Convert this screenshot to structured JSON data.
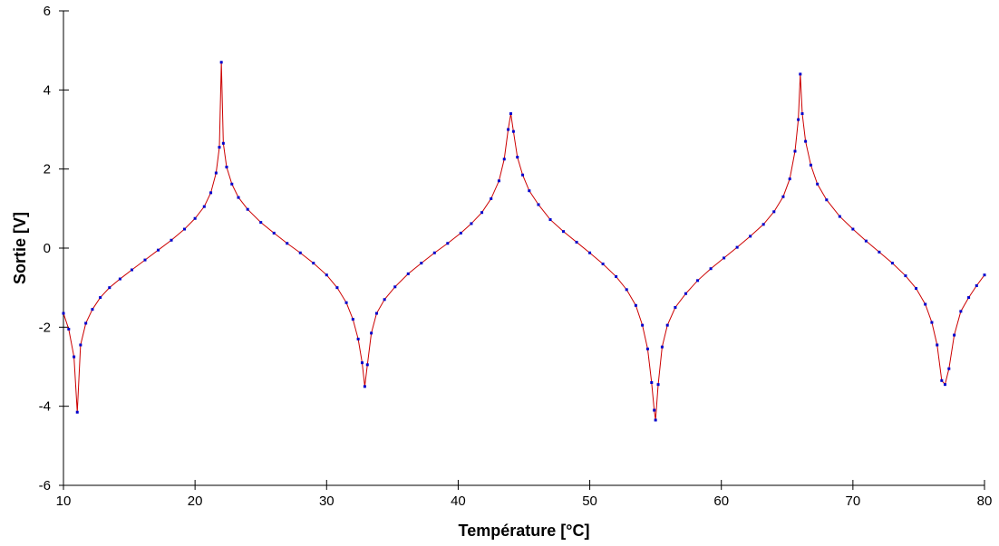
{
  "chart_data": {
    "type": "line",
    "title": "",
    "xlabel": "Température [°C]",
    "ylabel": "Sortie [V]",
    "xlim": [
      10,
      80
    ],
    "ylim": [
      -6,
      6
    ],
    "xticks": [
      "10",
      "20",
      "30",
      "40",
      "50",
      "60",
      "70",
      "80"
    ],
    "yticks": [
      "-6",
      "-4",
      "-2",
      "0",
      "2",
      "4",
      "6"
    ],
    "grid": false,
    "legend": "none",
    "colors": {
      "line": "#cc0000",
      "markers": "#0000cc"
    },
    "series": [
      {
        "x": [
          10.0,
          10.4,
          10.8,
          11.05,
          11.3,
          11.7,
          12.2,
          12.8,
          13.5,
          14.3,
          15.2,
          16.2,
          17.2,
          18.2,
          19.2,
          20.0,
          20.7,
          21.2,
          21.6,
          21.85,
          22.0,
          22.15,
          22.4,
          22.8,
          23.3,
          24.0,
          25.0,
          26.0,
          27.0,
          28.0,
          29.0,
          30.0,
          30.8,
          31.5,
          32.0,
          32.4,
          32.7,
          32.9,
          33.1,
          33.4,
          33.8,
          34.4,
          35.2,
          36.2,
          37.2,
          38.2,
          39.2,
          40.2,
          41.0,
          41.8,
          42.5,
          43.1,
          43.5,
          43.8,
          44.0,
          44.2,
          44.5,
          44.9,
          45.4,
          46.1,
          47.0,
          48.0,
          49.0,
          50.0,
          51.0,
          52.0,
          52.8,
          53.5,
          54.0,
          54.4,
          54.7,
          54.9,
          55.0,
          55.2,
          55.5,
          55.9,
          56.5,
          57.3,
          58.2,
          59.2,
          60.2,
          61.2,
          62.2,
          63.2,
          64.0,
          64.7,
          65.2,
          65.6,
          65.85,
          66.0,
          66.15,
          66.4,
          66.8,
          67.3,
          68.0,
          69.0,
          70.0,
          71.0,
          72.0,
          73.0,
          74.0,
          74.8,
          75.5,
          76.0,
          76.4,
          76.75,
          77.0,
          77.3,
          77.7,
          78.2,
          78.8,
          79.4,
          80.0
        ],
        "y": [
          -1.65,
          -2.05,
          -2.75,
          -4.15,
          -2.45,
          -1.9,
          -1.55,
          -1.25,
          -1.0,
          -0.78,
          -0.55,
          -0.3,
          -0.05,
          0.2,
          0.48,
          0.75,
          1.05,
          1.4,
          1.9,
          2.55,
          4.7,
          2.65,
          2.05,
          1.62,
          1.28,
          0.98,
          0.65,
          0.38,
          0.12,
          -0.12,
          -0.38,
          -0.68,
          -1.0,
          -1.38,
          -1.8,
          -2.3,
          -2.9,
          -3.5,
          -2.95,
          -2.15,
          -1.65,
          -1.3,
          -0.98,
          -0.65,
          -0.38,
          -0.12,
          0.12,
          0.38,
          0.62,
          0.9,
          1.25,
          1.7,
          2.25,
          3.0,
          3.4,
          2.95,
          2.3,
          1.85,
          1.45,
          1.1,
          0.72,
          0.42,
          0.15,
          -0.12,
          -0.4,
          -0.72,
          -1.05,
          -1.45,
          -1.95,
          -2.55,
          -3.4,
          -4.1,
          -4.35,
          -3.45,
          -2.5,
          -1.95,
          -1.5,
          -1.15,
          -0.82,
          -0.52,
          -0.25,
          0.02,
          0.3,
          0.6,
          0.92,
          1.3,
          1.75,
          2.45,
          3.25,
          4.4,
          3.4,
          2.7,
          2.1,
          1.62,
          1.22,
          0.8,
          0.48,
          0.18,
          -0.1,
          -0.38,
          -0.7,
          -1.02,
          -1.42,
          -1.88,
          -2.45,
          -3.35,
          -3.45,
          -3.05,
          -2.2,
          -1.6,
          -1.25,
          -0.95,
          -0.68
        ]
      }
    ]
  }
}
